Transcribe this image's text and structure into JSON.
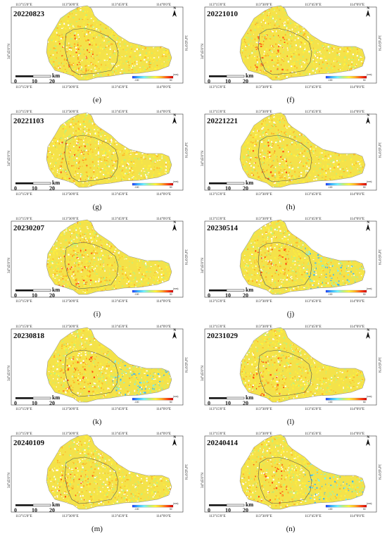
{
  "axis_labels": {
    "lon": [
      "113°15'0\"E",
      "113°30'0\"E",
      "113°45'0\"E",
      "114°0'0\"E"
    ],
    "lat": "34°45'0\"N"
  },
  "scale_bar": {
    "unit": "km",
    "ticks": [
      "0",
      "10",
      "20"
    ]
  },
  "legend": {
    "min": "-100",
    "max": "50",
    "unit": "(mm)"
  },
  "north_label": "N",
  "panels": [
    {
      "letter": "(e)",
      "date": "20220823"
    },
    {
      "letter": "(f)",
      "date": "20221010"
    },
    {
      "letter": "(g)",
      "date": "20221103"
    },
    {
      "letter": "(h)",
      "date": "20221221"
    },
    {
      "letter": "(i)",
      "date": "20230207"
    },
    {
      "letter": "(j)",
      "date": "20230514"
    },
    {
      "letter": "(k)",
      "date": "20230818"
    },
    {
      "letter": "(l)",
      "date": "20231029"
    },
    {
      "letter": "(m)",
      "date": "20240109"
    },
    {
      "letter": "(n)",
      "date": "20240414"
    }
  ],
  "colors": {
    "ramp": [
      "#1e3cff",
      "#38b6ff",
      "#6ff0ff",
      "#bdf27a",
      "#fff23a",
      "#ffb326",
      "#ff4a12",
      "#d40000"
    ],
    "dominant": "#f4e24a"
  }
}
